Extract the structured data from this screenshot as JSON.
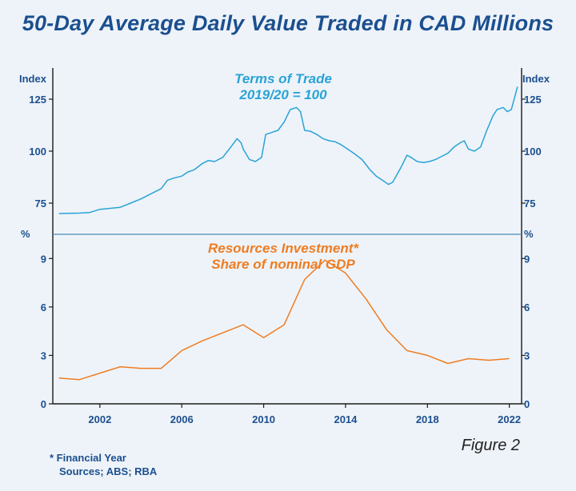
{
  "page_title": "50-Day Average Daily Value Traded in CAD Millions",
  "figure_label": "Figure 2",
  "footnote": "* Financial Year",
  "sources": "Sources; ABS; RBA",
  "colors": {
    "title": "#1b4f8f",
    "axis_text": "#1b4f8f",
    "axis_line": "#1a1a1a",
    "terms_of_trade": "#29a3d6",
    "resources_investment": "#ee7d22",
    "background": "#eef3f9",
    "divider": "#4a8fb4"
  },
  "chart_data": [
    {
      "type": "line",
      "title": "Terms of Trade",
      "subtitle": "2019/20 = 100",
      "ylabel_left": "Index",
      "ylabel_right": "Index",
      "ylim": [
        60,
        140
      ],
      "yticks": [
        75,
        100,
        125
      ],
      "x": [
        2000.0,
        2001.0,
        2001.5,
        2002.0,
        2002.5,
        2003.0,
        2003.5,
        2004.0,
        2004.5,
        2005.0,
        2005.3,
        2005.6,
        2006.0,
        2006.3,
        2006.6,
        2007.0,
        2007.3,
        2007.6,
        2008.0,
        2008.4,
        2008.7,
        2008.9,
        2009.0,
        2009.3,
        2009.6,
        2009.9,
        2010.1,
        2010.4,
        2010.7,
        2011.0,
        2011.3,
        2011.6,
        2011.8,
        2012.0,
        2012.3,
        2012.6,
        2012.9,
        2013.2,
        2013.5,
        2013.8,
        2014.1,
        2014.4,
        2014.8,
        2015.2,
        2015.5,
        2015.8,
        2016.1,
        2016.3,
        2016.7,
        2017.0,
        2017.2,
        2017.5,
        2017.8,
        2018.1,
        2018.4,
        2018.7,
        2019.0,
        2019.3,
        2019.6,
        2019.8,
        2020.0,
        2020.3,
        2020.6,
        2020.9,
        2021.2,
        2021.4,
        2021.7,
        2021.9,
        2022.1,
        2022.4
      ],
      "series": [
        {
          "name": "",
          "values": [
            70,
            70.2,
            70.5,
            72,
            72.5,
            73,
            75,
            77,
            79.5,
            82,
            86,
            87,
            88,
            90,
            91,
            94,
            95.5,
            95,
            97,
            102,
            106,
            104,
            101,
            96,
            95,
            97,
            108,
            109,
            110,
            114,
            120,
            121,
            119,
            110,
            109.5,
            108,
            106,
            105,
            104.5,
            103,
            101,
            99,
            96,
            91,
            88,
            86,
            84,
            85,
            92,
            98,
            97,
            95,
            94.5,
            95,
            96,
            97.5,
            99,
            102,
            104,
            105,
            101,
            100,
            102,
            110,
            117,
            120,
            121,
            119,
            120,
            131
          ]
        }
      ]
    },
    {
      "type": "line",
      "title": "Resources Investment*",
      "subtitle": "Share of nominal GDP",
      "ylabel_left": "%",
      "ylabel_right": "%",
      "ylim": [
        0,
        10.5
      ],
      "yticks": [
        0,
        3,
        6,
        9
      ],
      "x": [
        2000,
        2001,
        2002,
        2003,
        2004,
        2005,
        2006,
        2007,
        2008,
        2009,
        2010,
        2011,
        2012,
        2013,
        2014,
        2015,
        2016,
        2017,
        2018,
        2019,
        2020,
        2021,
        2022
      ],
      "xticks": [
        2002,
        2006,
        2010,
        2014,
        2018,
        2022
      ],
      "series": [
        {
          "name": "",
          "values": [
            1.6,
            1.5,
            1.9,
            2.3,
            2.2,
            2.2,
            3.3,
            3.9,
            4.4,
            4.9,
            4.1,
            4.9,
            7.7,
            8.9,
            8.1,
            6.5,
            4.6,
            3.3,
            3.0,
            2.5,
            2.8,
            2.7,
            2.8
          ]
        }
      ]
    }
  ]
}
